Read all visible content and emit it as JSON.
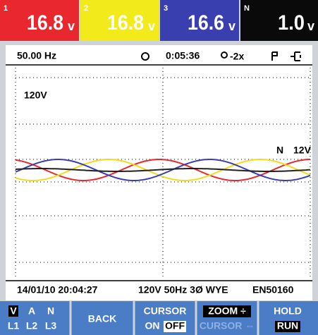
{
  "readings": [
    {
      "index": "1",
      "value": "16.8",
      "unit": "v"
    },
    {
      "index": "2",
      "value": "16.8",
      "unit": "v"
    },
    {
      "index": "3",
      "value": "16.6",
      "unit": "v"
    },
    {
      "index": "N",
      "value": "1.0",
      "unit": "v"
    }
  ],
  "status": {
    "frequency": "50.00 Hz",
    "time": "0:05:36",
    "zoom": "-2x"
  },
  "scope": {
    "scale_label": "120V",
    "channel_label": "N",
    "channel_scale": "12V"
  },
  "footer": {
    "datetime": "14/01/10 20:04:27",
    "config": "120V 50Hz 3Ø WYE",
    "standard": "EN50160"
  },
  "softkeys": [
    {
      "top": [
        "V",
        "A",
        "N"
      ],
      "bottom": [
        "L1",
        "L2",
        "L3"
      ]
    },
    {
      "label": "BACK"
    },
    {
      "top": "CURSOR",
      "bottom": [
        "ON",
        "OFF"
      ]
    },
    {
      "top": "ZOOM ÷",
      "bottom": "CURSOR ⇔"
    },
    {
      "top": "HOLD",
      "bottom": "RUN"
    }
  ]
}
